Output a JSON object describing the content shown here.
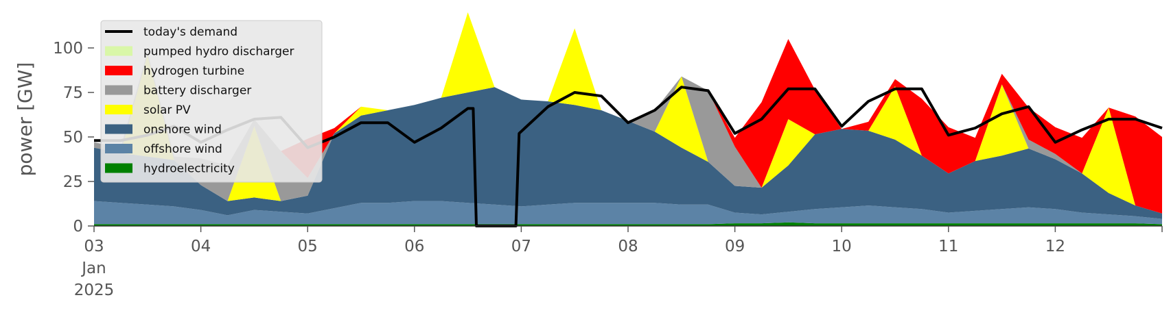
{
  "chart_data": {
    "type": "area",
    "stacked": true,
    "ylabel": "power [GW]",
    "ylim": [
      0,
      120
    ],
    "yticks": [
      0,
      25,
      50,
      75,
      100
    ],
    "ytick_labels": [
      "0",
      "25",
      "50",
      "75",
      "100"
    ],
    "x_unit": "day",
    "xlim": [
      3,
      13
    ],
    "xticks": [
      {
        "x": 3,
        "lines": [
          "03",
          "Jan",
          "2025"
        ]
      },
      {
        "x": 4,
        "lines": [
          "04"
        ]
      },
      {
        "x": 5,
        "lines": [
          "05"
        ]
      },
      {
        "x": 6,
        "lines": [
          "06"
        ]
      },
      {
        "x": 7,
        "lines": [
          "07"
        ]
      },
      {
        "x": 8,
        "lines": [
          "08"
        ]
      },
      {
        "x": 9,
        "lines": [
          "09"
        ]
      },
      {
        "x": 10,
        "lines": [
          "10"
        ]
      },
      {
        "x": 11,
        "lines": [
          "11"
        ]
      },
      {
        "x": 12,
        "lines": [
          "12"
        ]
      }
    ],
    "grid": false,
    "legend_position": "top-left",
    "legend": [
      {
        "label": "today's demand",
        "color": "#000000",
        "kind": "line"
      },
      {
        "label": "pumped hydro discharger",
        "color": "#d9f7a8",
        "kind": "patch"
      },
      {
        "label": "hydrogen turbine",
        "color": "#ff0000",
        "kind": "patch"
      },
      {
        "label": "battery discharger",
        "color": "#999999",
        "kind": "patch"
      },
      {
        "label": "solar PV",
        "color": "#ffff00",
        "kind": "patch"
      },
      {
        "label": "onshore wind",
        "color": "#3b6182",
        "kind": "patch"
      },
      {
        "label": "offshore wind",
        "color": "#5c83a6",
        "kind": "patch"
      },
      {
        "label": "hydroelectricity",
        "color": "#008000",
        "kind": "patch"
      }
    ],
    "x": [
      3.0,
      3.25,
      3.5,
      3.75,
      4.0,
      4.25,
      4.5,
      4.75,
      5.0,
      5.25,
      5.5,
      5.75,
      6.0,
      6.25,
      6.5,
      6.75,
      7.0,
      7.25,
      7.5,
      7.75,
      8.0,
      8.25,
      8.5,
      8.75,
      9.0,
      9.25,
      9.5,
      9.75,
      10.0,
      10.25,
      10.5,
      10.75,
      11.0,
      11.25,
      11.5,
      11.75,
      12.0,
      12.25,
      12.5,
      12.75,
      13.0
    ],
    "series": [
      {
        "name": "hydroelectricity",
        "color": "#008000",
        "values": [
          1,
          1,
          1,
          1,
          1,
          1,
          1,
          1,
          1,
          1,
          1,
          1,
          1,
          1,
          1,
          1,
          1,
          1,
          1,
          1,
          1,
          1,
          1,
          1,
          1.5,
          1.5,
          2,
          1.5,
          1.5,
          1.5,
          1.5,
          1.5,
          1.5,
          1.5,
          1.5,
          1.5,
          1.5,
          1.5,
          1.5,
          1.5,
          1
        ]
      },
      {
        "name": "offshore wind",
        "color": "#5c83a6",
        "values": [
          13,
          12,
          11,
          10,
          8,
          5,
          8,
          7,
          6,
          9,
          12,
          12,
          13,
          13,
          12,
          11,
          10,
          11,
          12,
          12,
          12,
          12,
          11,
          11,
          6,
          5,
          6,
          8,
          9,
          10,
          9,
          8,
          6,
          7,
          8,
          9,
          8,
          6,
          5,
          4,
          3
        ]
      },
      {
        "name": "onshore wind",
        "color": "#3b6182",
        "values": [
          30,
          28,
          27,
          26,
          14,
          8,
          7,
          6,
          10,
          42,
          49,
          52,
          54,
          58,
          62,
          66,
          60,
          58,
          55,
          52,
          46,
          40,
          32,
          24,
          15,
          15,
          26,
          42,
          44,
          42,
          38,
          30,
          22,
          28,
          30,
          33,
          28,
          22,
          12,
          6,
          3
        ]
      },
      {
        "name": "solar PV",
        "color": "#ffff00",
        "values": [
          0,
          0,
          57,
          0,
          0,
          0,
          40,
          0,
          0,
          0,
          5,
          0,
          0,
          0,
          45,
          0,
          0,
          0,
          43,
          0,
          0,
          0,
          40,
          0,
          0,
          0,
          26,
          0,
          0,
          0,
          30,
          0,
          0,
          0,
          40,
          0,
          0,
          0,
          48,
          0,
          0
        ]
      },
      {
        "name": "battery discharger",
        "color": "#999999",
        "values": [
          3,
          3,
          2,
          2,
          15,
          20,
          4,
          28,
          10,
          0,
          0,
          0,
          0,
          0,
          0,
          0,
          0,
          0,
          0,
          0,
          0,
          12,
          0,
          40,
          22,
          0,
          0,
          0,
          0,
          0,
          0,
          0,
          0,
          0,
          0,
          5,
          3,
          0,
          0,
          0,
          0
        ]
      },
      {
        "name": "hydrogen turbine",
        "color": "#ff0000",
        "values": [
          0,
          0,
          0,
          0,
          0,
          0,
          0,
          0,
          22,
          3,
          0,
          0,
          0,
          0,
          0,
          0,
          0,
          0,
          0,
          0,
          0,
          0,
          0,
          0,
          5,
          48,
          45,
          25,
          0,
          5,
          4,
          32,
          26,
          13,
          6,
          18,
          15,
          20,
          0,
          50,
          43
        ]
      },
      {
        "name": "pumped hydro discharger",
        "color": "#d9f7a8",
        "values": [
          0,
          0,
          0,
          0,
          0,
          0,
          0,
          0,
          0,
          0,
          0,
          0,
          0,
          0,
          0,
          0,
          0,
          0,
          0,
          0,
          0,
          0,
          0,
          0,
          0,
          0,
          0,
          0,
          0,
          0,
          0,
          0,
          0,
          0,
          0,
          0,
          0,
          0,
          0,
          0,
          0
        ]
      }
    ],
    "demand": {
      "name": "today's demand",
      "color": "#000000",
      "x": [
        3.0,
        3.25,
        3.5,
        3.75,
        4.0,
        4.25,
        4.5,
        4.75,
        5.0,
        5.25,
        5.5,
        5.75,
        6.0,
        6.25,
        6.5,
        6.55,
        6.58,
        6.95,
        6.98,
        7.25,
        7.5,
        7.75,
        8.0,
        8.25,
        8.5,
        8.75,
        9.0,
        9.25,
        9.5,
        9.75,
        10.0,
        10.25,
        10.5,
        10.75,
        11.0,
        11.25,
        11.5,
        11.75,
        12.0,
        12.25,
        12.5,
        12.75,
        13.0
      ],
      "values": [
        48,
        48,
        51,
        56,
        47,
        54,
        60,
        61,
        44,
        50,
        58,
        58,
        47,
        55,
        66,
        66,
        0,
        0,
        52,
        67,
        75,
        73,
        58,
        65,
        78,
        76,
        52,
        60,
        77,
        77,
        56,
        70,
        77,
        77,
        51,
        55,
        63,
        67,
        47,
        54,
        60,
        60,
        55
      ]
    }
  }
}
